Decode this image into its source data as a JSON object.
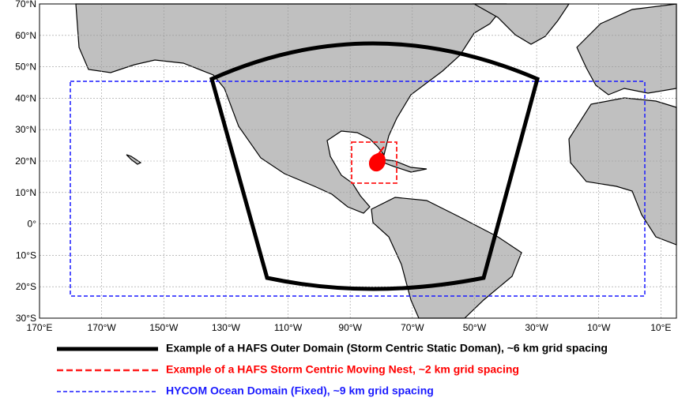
{
  "map": {
    "lonlim": [
      170,
      375
    ],
    "latlim": [
      -30,
      70
    ],
    "lon_ticks": [
      {
        "value": 170,
        "label": "170°E"
      },
      {
        "value": 190,
        "label": "170°W"
      },
      {
        "value": 210,
        "label": "150°W"
      },
      {
        "value": 230,
        "label": "130°W"
      },
      {
        "value": 250,
        "label": "110°W"
      },
      {
        "value": 270,
        "label": "90°W"
      },
      {
        "value": 290,
        "label": "70°W"
      },
      {
        "value": 310,
        "label": "50°W"
      },
      {
        "value": 330,
        "label": "30°W"
      },
      {
        "value": 350,
        "label": "10°W"
      },
      {
        "value": 370,
        "label": "10°E"
      }
    ],
    "lat_ticks": [
      {
        "value": 70,
        "label": "70°N"
      },
      {
        "value": 60,
        "label": "60°N"
      },
      {
        "value": 50,
        "label": "50°N"
      },
      {
        "value": 40,
        "label": "40°N"
      },
      {
        "value": 30,
        "label": "30°N"
      },
      {
        "value": 20,
        "label": "20°N"
      },
      {
        "value": 10,
        "label": "10°N"
      },
      {
        "value": 0,
        "label": "0°"
      },
      {
        "value": -10,
        "label": "10°S"
      },
      {
        "value": -20,
        "label": "20°S"
      },
      {
        "value": -30,
        "label": "30°S"
      }
    ],
    "grid": true
  },
  "legend": {
    "items": [
      {
        "label": "Example of a HAFS Outer Domain (Storm Centric Static Doman), ~6 km grid spacing"
      },
      {
        "label": "Example of a HAFS Storm Centric Moving Nest, ~2 km grid spacing"
      },
      {
        "label": "HYCOM Ocean Domain (Fixed), ~9 km grid spacing"
      }
    ]
  }
}
